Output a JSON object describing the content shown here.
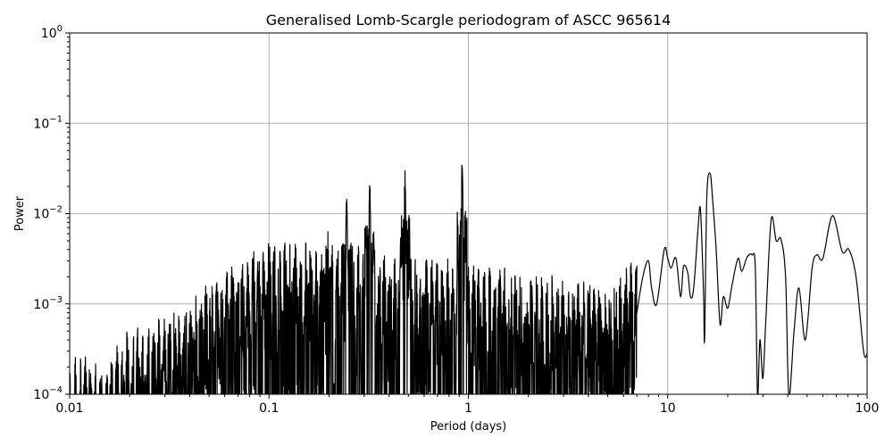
{
  "chart_data": {
    "type": "line",
    "title": "Generalised Lomb-Scargle periodogram of ASCC 965614",
    "xlabel": "Period (days)",
    "ylabel": "Power",
    "xscale": "log",
    "yscale": "log",
    "xlim": [
      0.01,
      100
    ],
    "ylim": [
      0.0001,
      1
    ],
    "grid": true,
    "legend": null,
    "x_ticks": [
      {
        "value": 0.01,
        "label": "0.01"
      },
      {
        "value": 0.1,
        "label": "0.1"
      },
      {
        "value": 1,
        "label": "1"
      },
      {
        "value": 10,
        "label": "10"
      },
      {
        "value": 100,
        "label": "100"
      }
    ],
    "y_ticks": [
      {
        "value": 0.0001,
        "base": "10",
        "exp": "−4"
      },
      {
        "value": 0.001,
        "base": "10",
        "exp": "−3"
      },
      {
        "value": 0.01,
        "base": "10",
        "exp": "−2"
      },
      {
        "value": 0.1,
        "base": "10",
        "exp": "−1"
      },
      {
        "value": 1,
        "base": "10",
        "exp": "0"
      }
    ],
    "series": [
      {
        "name": "periodogram",
        "color": "#000000",
        "notable_peaks": [
          {
            "period": 0.93,
            "power": 0.038
          },
          {
            "period": 0.48,
            "power": 0.032
          },
          {
            "period": 0.32,
            "power": 0.025
          },
          {
            "period": 0.245,
            "power": 0.017
          },
          {
            "period": 0.197,
            "power": 0.009
          },
          {
            "period": 16.0,
            "power": 0.028
          },
          {
            "period": 33.0,
            "power": 0.0085
          },
          {
            "period": 67.0,
            "power": 0.0095
          }
        ],
        "envelope": [
          {
            "period": 0.01,
            "power": 0.0002
          },
          {
            "period": 0.012,
            "power": 0.00028
          },
          {
            "period": 0.015,
            "power": 0.00016
          },
          {
            "period": 0.02,
            "power": 0.0005
          },
          {
            "period": 0.03,
            "power": 0.0006
          },
          {
            "period": 0.04,
            "power": 0.0011
          },
          {
            "period": 0.05,
            "power": 0.0016
          },
          {
            "period": 0.07,
            "power": 0.0025
          },
          {
            "period": 0.1,
            "power": 0.0045
          },
          {
            "period": 0.15,
            "power": 0.0045
          },
          {
            "period": 2.0,
            "power": 0.002
          },
          {
            "period": 5.0,
            "power": 0.0015
          },
          {
            "period": 8.0,
            "power": 0.004
          }
        ],
        "long_period_curve": [
          [
            7.0,
            0.0008
          ],
          [
            7.5,
            0.002
          ],
          [
            8.0,
            0.003
          ],
          [
            8.3,
            0.0015
          ],
          [
            8.8,
            0.001
          ],
          [
            9.6,
            0.004
          ],
          [
            10.0,
            0.0032
          ],
          [
            10.4,
            0.0025
          ],
          [
            11.0,
            0.0032
          ],
          [
            11.6,
            0.0012
          ],
          [
            12.0,
            0.0026
          ],
          [
            12.6,
            0.0022
          ],
          [
            13.0,
            0.0012
          ],
          [
            13.5,
            0.0015
          ],
          [
            14.2,
            0.007
          ],
          [
            14.6,
            0.011
          ],
          [
            15.1,
            0.0015
          ],
          [
            15.3,
            0.0004
          ],
          [
            15.7,
            0.015
          ],
          [
            16.3,
            0.028
          ],
          [
            16.8,
            0.014
          ],
          [
            17.5,
            0.004
          ],
          [
            18.3,
            0.0006
          ],
          [
            19.0,
            0.0012
          ],
          [
            20.0,
            0.0009
          ],
          [
            21.0,
            0.0016
          ],
          [
            22.5,
            0.0032
          ],
          [
            23.5,
            0.0023
          ],
          [
            25.0,
            0.0033
          ],
          [
            26.5,
            0.0035
          ],
          [
            27.5,
            0.0025
          ],
          [
            28.2,
            5e-05
          ],
          [
            29.0,
            0.0004
          ],
          [
            30.0,
            0.00015
          ],
          [
            31.0,
            0.0006
          ],
          [
            33.0,
            0.0085
          ],
          [
            35.0,
            0.005
          ],
          [
            37.0,
            0.0052
          ],
          [
            39.0,
            0.002
          ],
          [
            40.5,
            5e-05
          ],
          [
            43.0,
            0.0005
          ],
          [
            45.5,
            0.0015
          ],
          [
            49.0,
            0.0004
          ],
          [
            53.0,
            0.0025
          ],
          [
            56.0,
            0.0035
          ],
          [
            60.0,
            0.0032
          ],
          [
            67.0,
            0.0095
          ],
          [
            75.0,
            0.0038
          ],
          [
            81.0,
            0.004
          ],
          [
            88.0,
            0.002
          ],
          [
            96.0,
            0.0003
          ],
          [
            100.0,
            0.00028
          ]
        ]
      }
    ]
  }
}
